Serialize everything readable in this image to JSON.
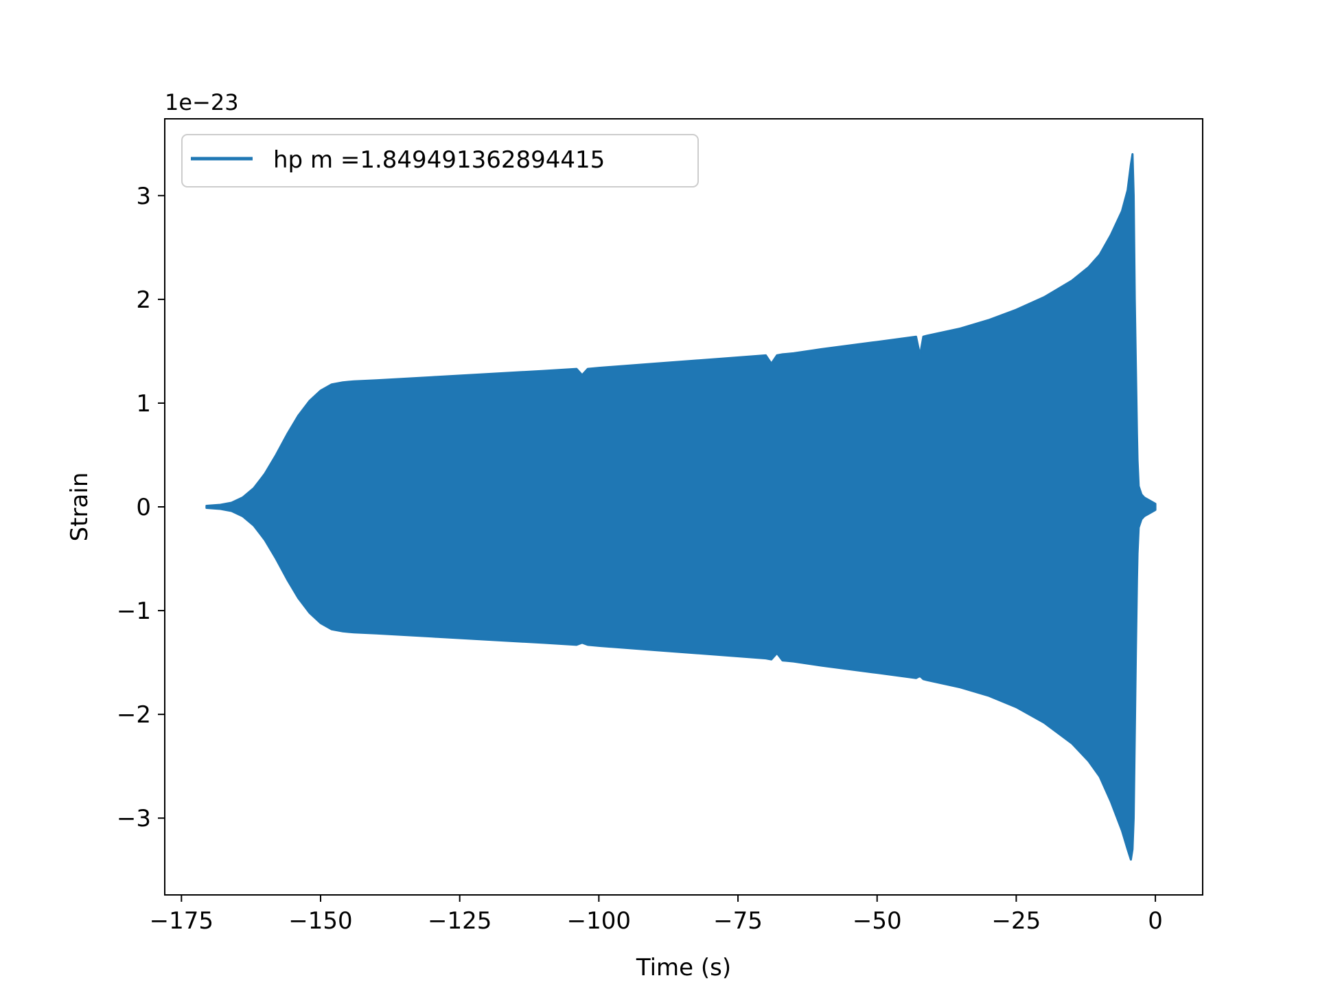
{
  "chart_data": {
    "type": "line",
    "title": "",
    "xlabel": "Time (s)",
    "ylabel": "Strain",
    "offset_label": "1e−23",
    "xlim": [
      -178,
      8.5
    ],
    "ylim": [
      -3.74,
      3.74
    ],
    "x_ticks": [
      -175,
      -150,
      -125,
      -100,
      -75,
      -50,
      -25,
      0
    ],
    "x_tick_labels": [
      "−175",
      "−150",
      "−125",
      "−100",
      "−75",
      "−50",
      "−25",
      "0"
    ],
    "y_ticks": [
      -3,
      -2,
      -1,
      0,
      1,
      2,
      3
    ],
    "y_tick_labels": [
      "−3",
      "−2",
      "−1",
      "0",
      "1",
      "2",
      "3"
    ],
    "grid": false,
    "legend_position": "upper-left",
    "series": [
      {
        "name": "hp m =1.849491362894415",
        "color": "#1f77b4",
        "style": "rapidly oscillating waveform; envelope (strain amplitude, units of 1e-23) vs time (s)",
        "envelope": {
          "x": [
            -170.5,
            -168,
            -166,
            -164,
            -162,
            -160,
            -158,
            -156,
            -154,
            -152,
            -150,
            -148,
            -146,
            -144,
            -140,
            -130,
            -120,
            -110,
            -104,
            -103,
            -102,
            -100,
            -90,
            -80,
            -70,
            -69,
            -68,
            -67,
            -65,
            -60,
            -50,
            -43,
            -42.3,
            -41.7,
            -41,
            -35,
            -30,
            -25,
            -20,
            -15,
            -12,
            -10,
            -8,
            -6,
            -5,
            -4.4,
            -4.1,
            -3.9,
            -3.7,
            -3.5,
            -3.3,
            -3.2,
            -3.0,
            -2.5,
            -2.0,
            -1.0,
            0
          ],
          "upper": [
            0.01,
            0.02,
            0.04,
            0.09,
            0.18,
            0.32,
            0.5,
            0.7,
            0.88,
            1.02,
            1.12,
            1.18,
            1.2,
            1.21,
            1.22,
            1.25,
            1.28,
            1.31,
            1.33,
            1.27,
            1.33,
            1.34,
            1.38,
            1.42,
            1.46,
            1.38,
            1.46,
            1.47,
            1.48,
            1.52,
            1.59,
            1.64,
            1.46,
            1.64,
            1.65,
            1.72,
            1.8,
            1.9,
            2.02,
            2.18,
            2.31,
            2.43,
            2.62,
            2.85,
            3.05,
            3.3,
            3.4,
            3.0,
            2.0,
            1.35,
            0.7,
            0.45,
            0.2,
            0.12,
            0.09,
            0.06,
            0.03
          ],
          "lower": [
            -0.01,
            -0.02,
            -0.04,
            -0.09,
            -0.18,
            -0.32,
            -0.5,
            -0.7,
            -0.88,
            -1.02,
            -1.12,
            -1.18,
            -1.2,
            -1.21,
            -1.22,
            -1.25,
            -1.28,
            -1.31,
            -1.33,
            -1.31,
            -1.33,
            -1.34,
            -1.38,
            -1.42,
            -1.46,
            -1.47,
            -1.41,
            -1.48,
            -1.49,
            -1.53,
            -1.6,
            -1.65,
            -1.63,
            -1.66,
            -1.67,
            -1.74,
            -1.82,
            -1.93,
            -2.08,
            -2.28,
            -2.45,
            -2.6,
            -2.84,
            -3.12,
            -3.3,
            -3.4,
            -3.3,
            -3.0,
            -2.2,
            -1.4,
            -0.7,
            -0.45,
            -0.2,
            -0.12,
            -0.09,
            -0.06,
            -0.03
          ]
        }
      }
    ]
  }
}
